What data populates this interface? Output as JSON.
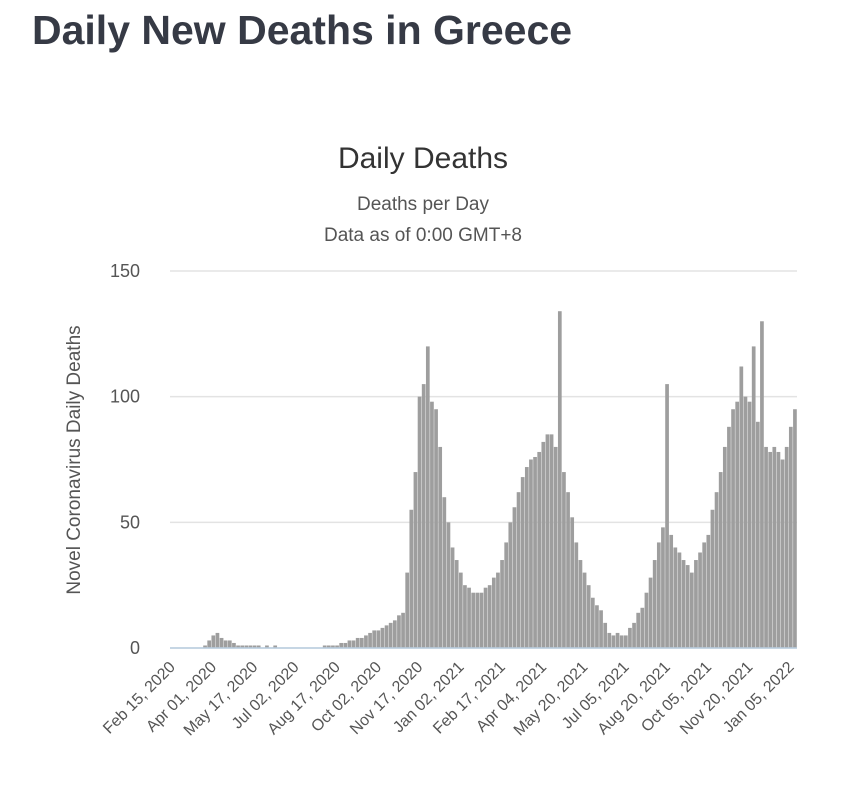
{
  "page_title": "Daily New Deaths in Greece",
  "chart_data": {
    "type": "bar",
    "title": "Daily Deaths",
    "subtitle": [
      "Deaths per Day",
      "Data as of 0:00 GMT+8"
    ],
    "y_label": "Novel Coronavirus Daily Deaths",
    "color": "#9e9e9e",
    "ylim": [
      0,
      150
    ],
    "yticks": [
      0,
      50,
      100,
      150
    ],
    "grid": true,
    "categories": [
      "Feb 15, 2020",
      null,
      null,
      null,
      null,
      null,
      null,
      null,
      null,
      null,
      "Apr 01, 2020",
      null,
      null,
      null,
      null,
      null,
      null,
      null,
      null,
      null,
      "May 17, 2020",
      null,
      null,
      null,
      null,
      null,
      null,
      null,
      null,
      null,
      "Jul 02, 2020",
      null,
      null,
      null,
      null,
      null,
      null,
      null,
      null,
      null,
      "Aug 17, 2020",
      null,
      null,
      null,
      null,
      null,
      null,
      null,
      null,
      null,
      "Oct 02, 2020",
      null,
      null,
      null,
      null,
      null,
      null,
      null,
      null,
      null,
      "Nov 17, 2020",
      null,
      null,
      null,
      null,
      null,
      null,
      null,
      null,
      null,
      "Jan 02, 2021",
      null,
      null,
      null,
      null,
      null,
      null,
      null,
      null,
      null,
      "Feb 17, 2021",
      null,
      null,
      null,
      null,
      null,
      null,
      null,
      null,
      null,
      "Apr 04, 2021",
      null,
      null,
      null,
      null,
      null,
      null,
      null,
      null,
      null,
      "May 20, 2021",
      null,
      null,
      null,
      null,
      null,
      null,
      null,
      null,
      null,
      "Jul 05, 2021",
      null,
      null,
      null,
      null,
      null,
      null,
      null,
      null,
      null,
      "Aug 20, 2021",
      null,
      null,
      null,
      null,
      null,
      null,
      null,
      null,
      null,
      "Oct 05, 2021",
      null,
      null,
      null,
      null,
      null,
      null,
      null,
      null,
      null,
      "Nov 20, 2021",
      null,
      null,
      null,
      null,
      null,
      null,
      null,
      null,
      null,
      "Jan 05, 2022",
      null
    ],
    "values": [
      0,
      0,
      0,
      0,
      0,
      0,
      0,
      0,
      1,
      3,
      5,
      6,
      4,
      3,
      3,
      2,
      1,
      1,
      1,
      1,
      1,
      1,
      0,
      1,
      0,
      1,
      0,
      0,
      0,
      0,
      0,
      0,
      0,
      0,
      0,
      0,
      0,
      1,
      1,
      1,
      1,
      2,
      2,
      3,
      3,
      4,
      4,
      5,
      6,
      7,
      7,
      8,
      9,
      10,
      11,
      13,
      14,
      30,
      55,
      70,
      100,
      105,
      120,
      98,
      95,
      80,
      60,
      50,
      40,
      35,
      30,
      25,
      24,
      22,
      22,
      22,
      24,
      25,
      28,
      30,
      35,
      42,
      50,
      56,
      62,
      68,
      72,
      75,
      76,
      78,
      82,
      85,
      85,
      80,
      134,
      70,
      62,
      52,
      42,
      35,
      30,
      25,
      20,
      17,
      15,
      10,
      6,
      5,
      6,
      5,
      5,
      8,
      10,
      14,
      16,
      22,
      28,
      35,
      42,
      48,
      105,
      45,
      40,
      38,
      35,
      33,
      30,
      35,
      38,
      42,
      45,
      55,
      62,
      70,
      80,
      88,
      95,
      98,
      112,
      100,
      98,
      120,
      90,
      130,
      80,
      78,
      80,
      78,
      75,
      80,
      88,
      95
    ]
  }
}
